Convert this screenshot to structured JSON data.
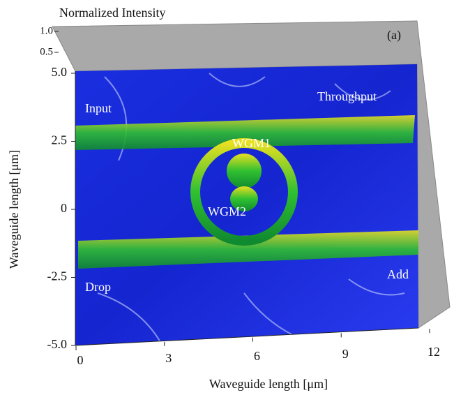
{
  "chart_data": {
    "type": "surface3d",
    "title": "Normalized Intensity",
    "xlabel": "Waveguide length [μm]",
    "ylabel": "Waveguide length [μm]",
    "xlim": [
      0,
      12
    ],
    "xticks": [
      0,
      3,
      6,
      9,
      12
    ],
    "ylim": [
      -5,
      5
    ],
    "yticks": [
      {
        "value": 5,
        "label": "5.0"
      },
      2.5,
      0,
      -2.5,
      {
        "value": -5,
        "label": "-5.0"
      }
    ],
    "zlim": [
      0,
      1
    ],
    "zticks": [
      {
        "value": 1,
        "label": "1.0"
      },
      {
        "value": 0.5,
        "label": "0.5"
      }
    ],
    "annotations": [
      "(a)",
      "Input",
      "Throughput",
      "WGM1",
      "WGM2",
      "Drop",
      "Add"
    ]
  }
}
